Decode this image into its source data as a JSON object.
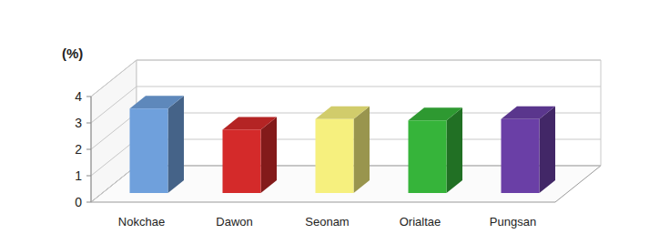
{
  "chart_data": {
    "type": "bar",
    "y_label": "(%)",
    "categories": [
      "Nokchae",
      "Dawon",
      "Seonam",
      "Orialtae",
      "Pungsan"
    ],
    "values": [
      3.2,
      2.4,
      2.8,
      2.75,
      2.8
    ],
    "colors": [
      "#6fa0dc",
      "#d42a2a",
      "#f6f07e",
      "#36b43a",
      "#6a3fa6"
    ],
    "ylim": [
      0,
      4
    ],
    "yticks": [
      0,
      1,
      2,
      3,
      4
    ],
    "grid": true
  }
}
